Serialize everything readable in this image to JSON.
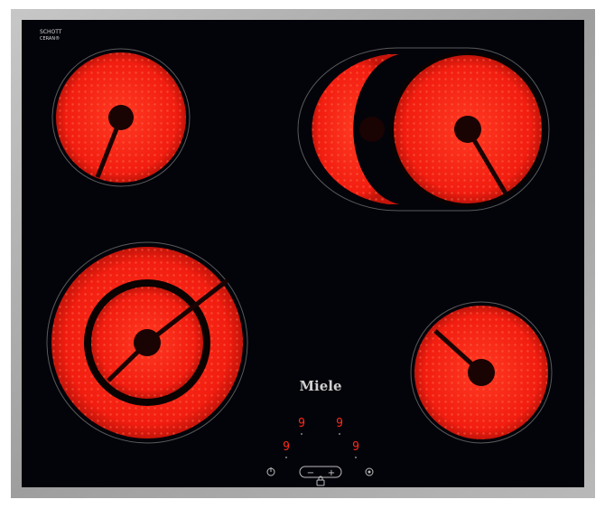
{
  "glass_marking": {
    "line1": "SCHOTT",
    "line2": "CERAN®"
  },
  "brand": "Miele",
  "zone_displays": [
    "9",
    "9",
    "9",
    "9"
  ],
  "controls": {
    "minus": "−",
    "plus": "+"
  },
  "icons": {
    "power": "power-icon",
    "lock": "lock-icon",
    "timer": "timer-icon"
  },
  "colors": {
    "frame": "#a9a9a9",
    "glass": "#03040a",
    "heating_zone": "#ff2a1a",
    "display": "#ff2a1a"
  }
}
